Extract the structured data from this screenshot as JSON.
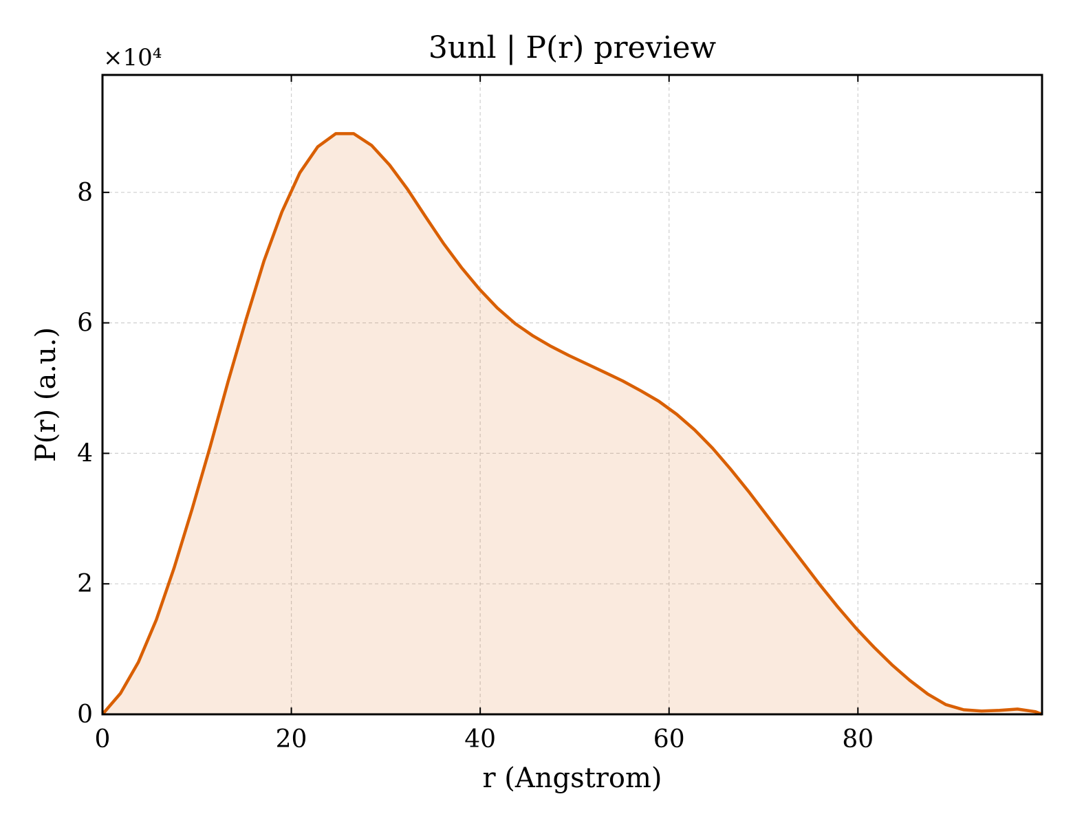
{
  "chart_data": {
    "type": "area",
    "title": "3unl | P(r) preview",
    "xlabel": "r (Angstrom)",
    "ylabel": "P(r) (a.u.)",
    "y_multiplier": "×10⁴",
    "xlim": [
      0,
      99.5
    ],
    "ylim": [
      0,
      9.8
    ],
    "x_ticks": [
      0,
      20,
      40,
      60,
      80
    ],
    "y_ticks": [
      0,
      2,
      4,
      6,
      8
    ],
    "x_tick_labels": [
      "0",
      "20",
      "40",
      "60",
      "80"
    ],
    "y_tick_labels": [
      "0",
      "2",
      "4",
      "6",
      "8"
    ],
    "grid": true,
    "series": [
      {
        "color": "#d95f02",
        "fill_color": "#d95f02",
        "fill_opacity": 0.13,
        "x": [
          0,
          1.9,
          3.8,
          5.7,
          7.6,
          9.5,
          11.4,
          13.3,
          15.2,
          17.1,
          19.0,
          20.9,
          22.8,
          24.7,
          26.6,
          28.5,
          30.4,
          32.3,
          34.2,
          36.1,
          38.0,
          39.9,
          41.8,
          43.7,
          45.6,
          47.5,
          49.4,
          51.3,
          53.2,
          55.1,
          57.0,
          58.9,
          60.8,
          62.7,
          64.6,
          66.5,
          68.4,
          70.3,
          72.2,
          74.1,
          76.0,
          77.9,
          79.8,
          81.7,
          83.6,
          85.5,
          87.4,
          89.3,
          91.2,
          93.1,
          95.0,
          96.9,
          98.8,
          99.5
        ],
        "y": [
          0,
          0.32,
          0.8,
          1.45,
          2.25,
          3.15,
          4.1,
          5.1,
          6.05,
          6.95,
          7.7,
          8.3,
          8.7,
          8.9,
          8.9,
          8.72,
          8.42,
          8.05,
          7.63,
          7.22,
          6.85,
          6.52,
          6.23,
          5.99,
          5.8,
          5.64,
          5.5,
          5.37,
          5.24,
          5.11,
          4.96,
          4.8,
          4.6,
          4.36,
          4.08,
          3.76,
          3.42,
          3.06,
          2.7,
          2.34,
          1.98,
          1.64,
          1.32,
          1.03,
          0.76,
          0.52,
          0.31,
          0.15,
          0.07,
          0.05,
          0.06,
          0.08,
          0.04,
          0
        ]
      }
    ]
  }
}
